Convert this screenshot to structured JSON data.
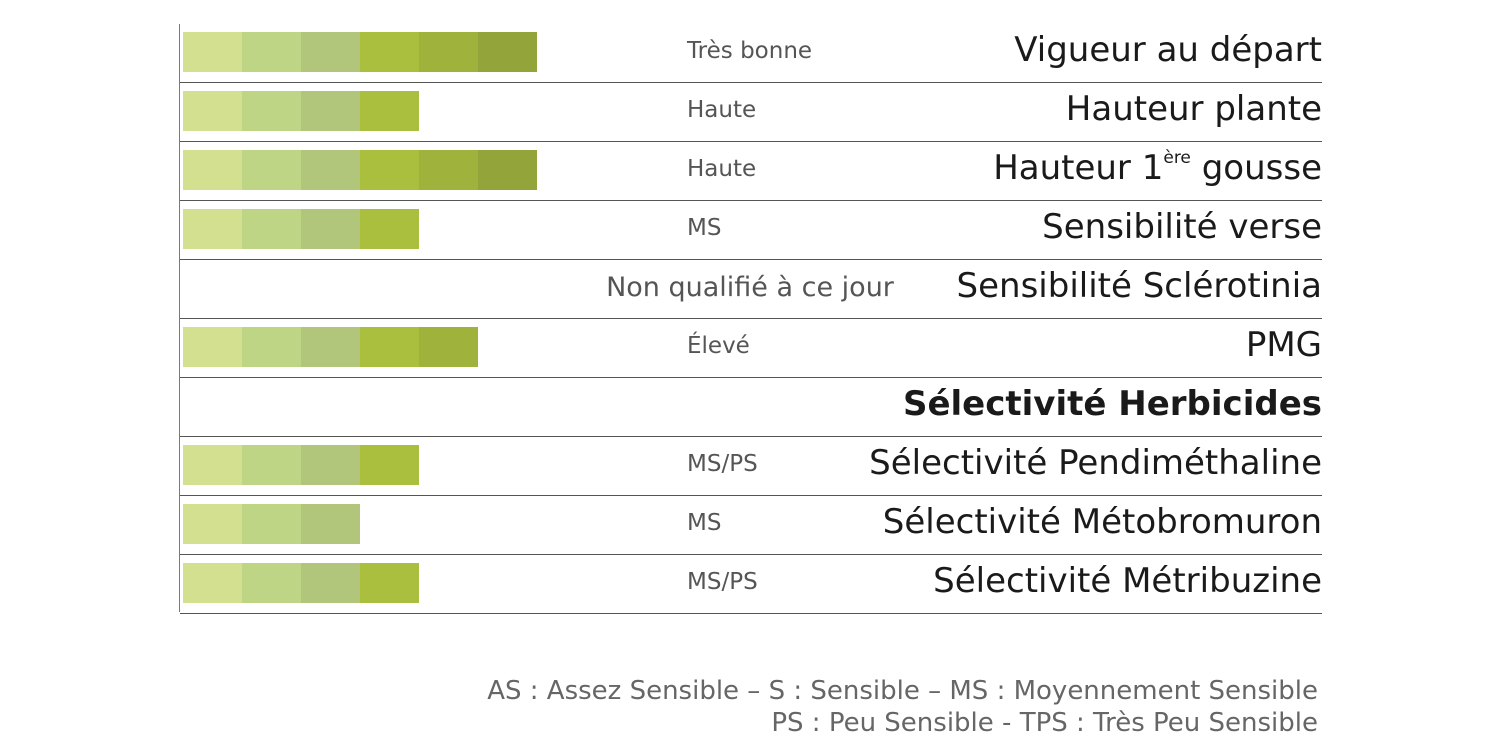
{
  "chart_data": {
    "type": "bar",
    "scale_max": 6,
    "segment_colors": [
      "#d3e08f",
      "#bdd584",
      "#b2c67b",
      "#abbf3f",
      "#9eb23c",
      "#93a43b"
    ],
    "rows": [
      {
        "label": "Vigueur au départ",
        "rating": "Très bonne",
        "value": 6
      },
      {
        "label": "Hauteur plante",
        "rating": "Haute",
        "value": 4
      },
      {
        "label": "Hauteur 1",
        "label_sup": "ère",
        "label_after": " gousse",
        "rating": "Haute",
        "value": 6
      },
      {
        "label": "Sensibilité verse",
        "rating": "MS",
        "value": 4
      },
      {
        "label": "Sensibilité Sclérotinia",
        "rating": "Non qualifié à ce jour",
        "value": 0
      },
      {
        "label": "PMG",
        "rating": "Élevé",
        "value": 5
      },
      {
        "label": "Sélectivité Herbicides",
        "rating": "",
        "value": 0,
        "header": true
      },
      {
        "label": "Sélectivité Pendiméthaline",
        "rating": "MS/PS",
        "value": 4
      },
      {
        "label": "Sélectivité Métobromuron",
        "rating": "MS",
        "value": 3
      },
      {
        "label": "Sélectivité Métribuzine",
        "rating": "MS/PS",
        "value": 4
      }
    ]
  },
  "legend": {
    "line1": "AS : Assez Sensible –  S : Sensible – MS : Moyennement Sensible",
    "line2": "PS : Peu Sensible - TPS : Très Peu Sensible"
  }
}
